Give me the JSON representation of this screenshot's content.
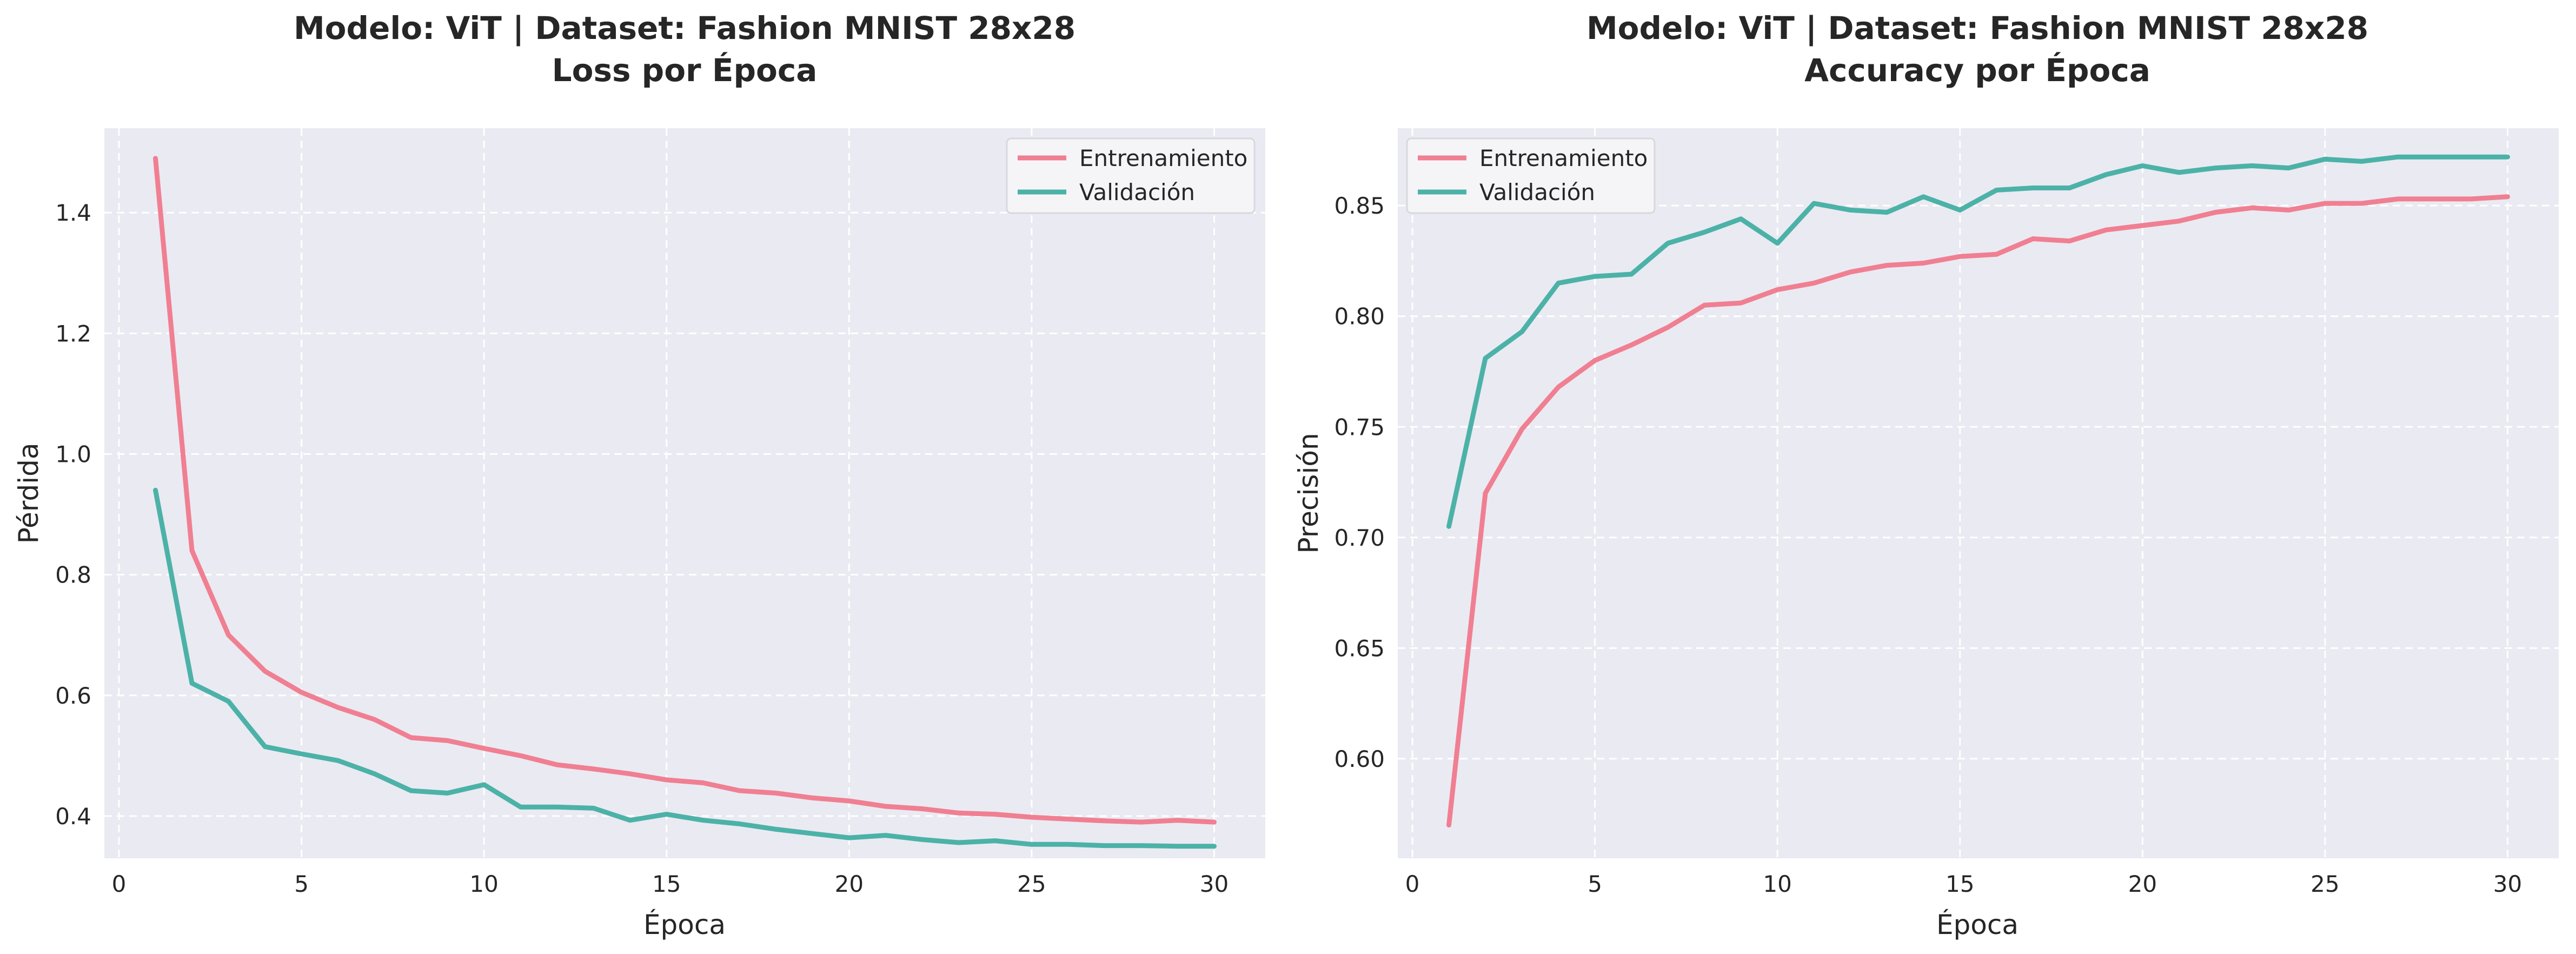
{
  "colors": {
    "plot_background": "#eaeaf2",
    "grid": "#ffffff",
    "train": "#f07f92",
    "val": "#4cb2a8"
  },
  "chart_data": [
    {
      "type": "line",
      "title_line1": "Modelo: ViT | Dataset: Fashion MNIST 28x28",
      "title_line2": "Loss por Época",
      "xlabel": "Época",
      "ylabel": "Pérdida",
      "xlim": [
        -0.4,
        31.4
      ],
      "ylim": [
        0.33,
        1.54
      ],
      "xticks": [
        0,
        5,
        10,
        15,
        20,
        25,
        30
      ],
      "xtick_labels": [
        "0",
        "5",
        "10",
        "15",
        "20",
        "25",
        "30"
      ],
      "yticks": [
        0.4,
        0.6,
        0.8,
        1.0,
        1.2,
        1.4
      ],
      "ytick_labels": [
        "0.4",
        "0.6",
        "0.8",
        "1.0",
        "1.2",
        "1.4"
      ],
      "grid": true,
      "legend_position": "upper right",
      "x": [
        1,
        2,
        3,
        4,
        5,
        6,
        7,
        8,
        9,
        10,
        11,
        12,
        13,
        14,
        15,
        16,
        17,
        18,
        19,
        20,
        21,
        22,
        23,
        24,
        25,
        26,
        27,
        28,
        29,
        30
      ],
      "series": [
        {
          "name": "Entrenamiento",
          "values": [
            1.49,
            0.84,
            0.7,
            0.64,
            0.605,
            0.58,
            0.56,
            0.53,
            0.525,
            0.512,
            0.5,
            0.485,
            0.478,
            0.47,
            0.46,
            0.455,
            0.442,
            0.438,
            0.43,
            0.425,
            0.416,
            0.412,
            0.405,
            0.403,
            0.398,
            0.395,
            0.392,
            0.39,
            0.393,
            0.39
          ]
        },
        {
          "name": "Validación",
          "values": [
            0.94,
            0.62,
            0.59,
            0.515,
            0.503,
            0.492,
            0.47,
            0.442,
            0.438,
            0.452,
            0.415,
            0.415,
            0.413,
            0.393,
            0.403,
            0.393,
            0.387,
            0.378,
            0.371,
            0.364,
            0.368,
            0.361,
            0.356,
            0.359,
            0.353,
            0.353,
            0.351,
            0.351,
            0.35,
            0.35
          ]
        }
      ]
    },
    {
      "type": "line",
      "title_line1": "Modelo: ViT | Dataset: Fashion MNIST 28x28",
      "title_line2": "Accuracy por Época",
      "xlabel": "Época",
      "ylabel": "Precisión",
      "xlim": [
        -0.4,
        31.4
      ],
      "ylim": [
        0.555,
        0.885
      ],
      "xticks": [
        0,
        5,
        10,
        15,
        20,
        25,
        30
      ],
      "xtick_labels": [
        "0",
        "5",
        "10",
        "15",
        "20",
        "25",
        "30"
      ],
      "yticks": [
        0.6,
        0.65,
        0.7,
        0.75,
        0.8,
        0.85
      ],
      "ytick_labels": [
        "0.60",
        "0.65",
        "0.70",
        "0.75",
        "0.80",
        "0.85"
      ],
      "grid": true,
      "legend_position": "upper left",
      "x": [
        1,
        2,
        3,
        4,
        5,
        6,
        7,
        8,
        9,
        10,
        11,
        12,
        13,
        14,
        15,
        16,
        17,
        18,
        19,
        20,
        21,
        22,
        23,
        24,
        25,
        26,
        27,
        28,
        29,
        30
      ],
      "series": [
        {
          "name": "Entrenamiento",
          "values": [
            0.57,
            0.72,
            0.749,
            0.768,
            0.78,
            0.787,
            0.795,
            0.805,
            0.806,
            0.812,
            0.815,
            0.82,
            0.823,
            0.824,
            0.827,
            0.828,
            0.835,
            0.834,
            0.839,
            0.841,
            0.843,
            0.847,
            0.849,
            0.848,
            0.851,
            0.851,
            0.853,
            0.853,
            0.853,
            0.854
          ]
        },
        {
          "name": "Validación",
          "values": [
            0.705,
            0.781,
            0.793,
            0.815,
            0.818,
            0.819,
            0.833,
            0.838,
            0.844,
            0.833,
            0.851,
            0.848,
            0.847,
            0.854,
            0.848,
            0.857,
            0.858,
            0.858,
            0.864,
            0.868,
            0.865,
            0.867,
            0.868,
            0.867,
            0.871,
            0.87,
            0.872,
            0.872,
            0.872,
            0.872
          ]
        }
      ]
    }
  ]
}
